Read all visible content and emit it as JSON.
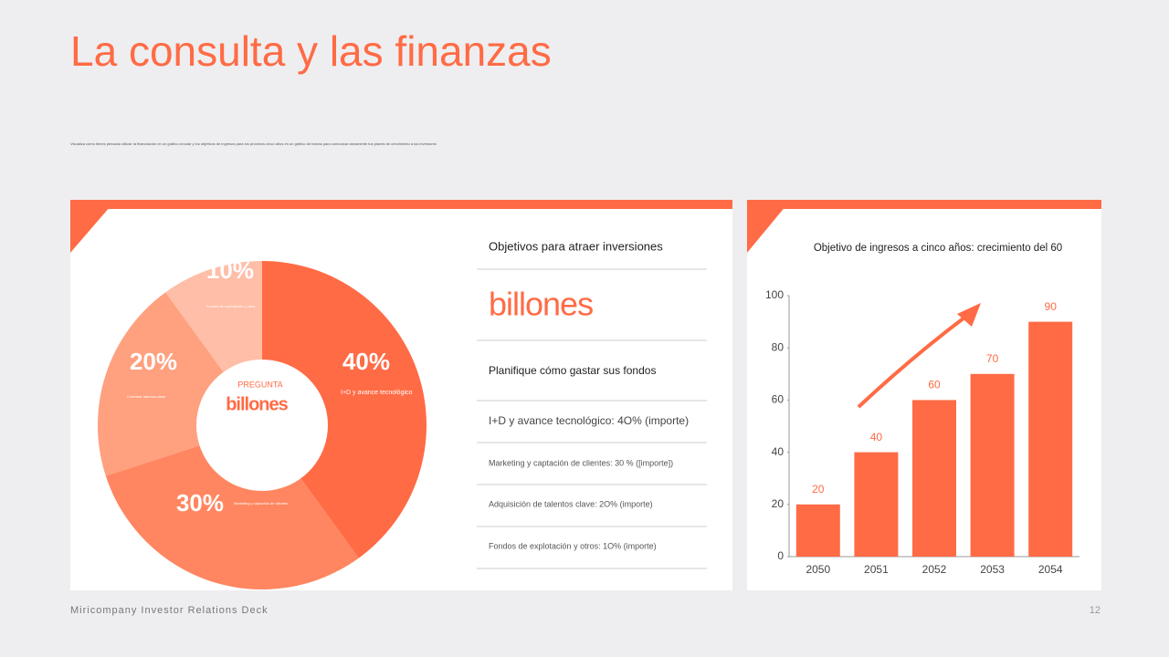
{
  "slide": {
    "title": "La consulta y las finanzas",
    "subtitle": "Visualiza cómo tienes pensado utilizar la financiación en un gráfico circular y los objetivos de ingresos para los próximos cinco años en un gráfico de barras para comunicar claramente tus planes de crecimiento a los inversores",
    "panel": {
      "heading": "Objetivos para atraer inversiones",
      "big_text": "billones",
      "subheading": "Planifique cómo gastar sus fondos",
      "items": [
        "I+D y avance tecnológico: 4O% (importe)",
        "Marketing y captación de clientes: 30 % ([importe])",
        "Adquisición de talentos clave: 2O% (importe)",
        "Fondos de explotación y otros: 1O% (importe)"
      ]
    },
    "footer": "Miricompany Investor Relations Deck",
    "page_number": "12"
  },
  "chart_data": [
    {
      "type": "donut",
      "center_label": "PREGUNTA",
      "center_value": "billones",
      "categories": [
        "I+D y avance tecnológico",
        "Marketing y captación de clientes",
        "Contratar talentos clave",
        "Fondos de explotación y otros"
      ],
      "values": [
        40,
        30,
        20,
        10
      ],
      "value_labels": [
        "40%",
        "30%",
        "20%",
        "10%"
      ],
      "colors": [
        "#ff6b45",
        "#ff8660",
        "#ffa07f",
        "#ffbea7"
      ]
    },
    {
      "type": "bar",
      "title": "Objetivo de ingresos a cinco años: crecimiento del 60",
      "categories": [
        "2050",
        "2051",
        "2052",
        "2053",
        "2054"
      ],
      "values": [
        20,
        40,
        60,
        70,
        90
      ],
      "color": "#ff6b45",
      "ylim": [
        0,
        100
      ],
      "yticks": [
        0,
        20,
        40,
        60,
        80,
        100
      ]
    }
  ]
}
